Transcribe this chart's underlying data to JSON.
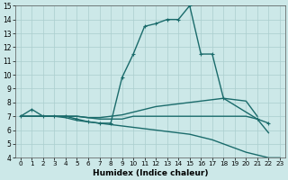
{
  "xlabel": "Humidex (Indice chaleur)",
  "xlim": [
    -0.5,
    23.5
  ],
  "ylim": [
    4,
    15
  ],
  "xticks": [
    0,
    1,
    2,
    3,
    4,
    5,
    6,
    7,
    8,
    9,
    10,
    11,
    12,
    13,
    14,
    15,
    16,
    17,
    18,
    19,
    20,
    21,
    22,
    23
  ],
  "yticks": [
    4,
    5,
    6,
    7,
    8,
    9,
    10,
    11,
    12,
    13,
    14,
    15
  ],
  "bg_color": "#cce8e8",
  "grid_color": "#aacece",
  "line_color": "#1a6b6b",
  "line_width": 1.0,
  "marker": "+",
  "marker_size": 3.5,
  "marker_lw": 0.8,
  "lines": [
    {
      "x": [
        0,
        1,
        2,
        3,
        4,
        5,
        6,
        7,
        8,
        9,
        10,
        11,
        12,
        13,
        14,
        15,
        16,
        17,
        18,
        21,
        22
      ],
      "y": [
        7.0,
        7.5,
        7.0,
        7.0,
        7.0,
        6.8,
        6.6,
        6.5,
        6.5,
        9.8,
        11.5,
        13.5,
        13.7,
        14.0,
        14.0,
        15.0,
        11.5,
        11.5,
        8.3,
        6.8,
        6.5
      ],
      "marker": true
    },
    {
      "x": [
        0,
        2,
        3,
        4,
        5,
        6,
        7,
        8,
        9,
        10,
        11,
        12,
        13,
        14,
        15,
        16,
        17,
        18,
        19,
        20,
        21
      ],
      "y": [
        7.0,
        7.0,
        7.0,
        7.0,
        7.0,
        6.9,
        6.9,
        7.0,
        7.1,
        7.3,
        7.5,
        7.7,
        7.8,
        7.9,
        8.0,
        8.1,
        8.2,
        8.3,
        8.2,
        8.1,
        7.0
      ],
      "marker": false
    },
    {
      "x": [
        0,
        2,
        3,
        4,
        5,
        6,
        7,
        8,
        9,
        10,
        11,
        12,
        13,
        14,
        15,
        16,
        17,
        18,
        19,
        20,
        21,
        22
      ],
      "y": [
        7.0,
        7.0,
        7.0,
        7.0,
        7.0,
        6.9,
        6.8,
        6.8,
        6.8,
        7.0,
        7.0,
        7.0,
        7.0,
        7.0,
        7.0,
        7.0,
        7.0,
        7.0,
        7.0,
        7.0,
        6.8,
        5.8
      ],
      "marker": false
    },
    {
      "x": [
        0,
        2,
        3,
        4,
        5,
        6,
        7,
        8,
        9,
        10,
        11,
        12,
        13,
        14,
        15,
        16,
        17,
        18,
        19,
        20,
        21,
        22,
        23
      ],
      "y": [
        7.0,
        7.0,
        7.0,
        6.9,
        6.7,
        6.6,
        6.5,
        6.4,
        6.3,
        6.2,
        6.1,
        6.0,
        5.9,
        5.8,
        5.7,
        5.5,
        5.3,
        5.0,
        4.7,
        4.4,
        4.2,
        4.0,
        4.0
      ],
      "marker": false
    }
  ]
}
